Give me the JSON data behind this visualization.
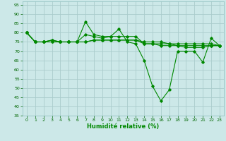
{
  "xlabel": "Humidité relative (%)",
  "background_color": "#cce8e8",
  "grid_color": "#aacccc",
  "line_color": "#008800",
  "xlim": [
    -0.5,
    23.5
  ],
  "ylim": [
    35,
    97
  ],
  "yticks": [
    35,
    40,
    45,
    50,
    55,
    60,
    65,
    70,
    75,
    80,
    85,
    90,
    95
  ],
  "xticks": [
    0,
    1,
    2,
    3,
    4,
    5,
    6,
    7,
    8,
    9,
    10,
    11,
    12,
    13,
    14,
    15,
    16,
    17,
    18,
    19,
    20,
    21,
    22,
    23
  ],
  "series1": [
    80,
    75,
    75,
    76,
    75,
    75,
    75,
    79,
    78,
    77,
    78,
    82,
    75,
    74,
    65,
    51,
    43,
    49,
    70,
    70,
    70,
    64,
    77,
    73
  ],
  "series2": [
    80,
    75,
    75,
    76,
    75,
    75,
    75,
    86,
    79,
    78,
    78,
    78,
    78,
    78,
    74,
    74,
    74,
    74,
    73,
    73,
    73,
    73,
    73,
    73
  ],
  "series3": [
    80,
    75,
    75,
    75,
    75,
    75,
    75,
    75,
    76,
    76,
    76,
    76,
    76,
    76,
    75,
    75,
    75,
    74,
    74,
    74,
    74,
    74,
    74,
    73
  ],
  "series4": [
    80,
    75,
    75,
    75,
    75,
    75,
    75,
    75,
    76,
    76,
    76,
    76,
    76,
    76,
    74,
    74,
    73,
    73,
    73,
    72,
    72,
    72,
    73,
    73
  ]
}
